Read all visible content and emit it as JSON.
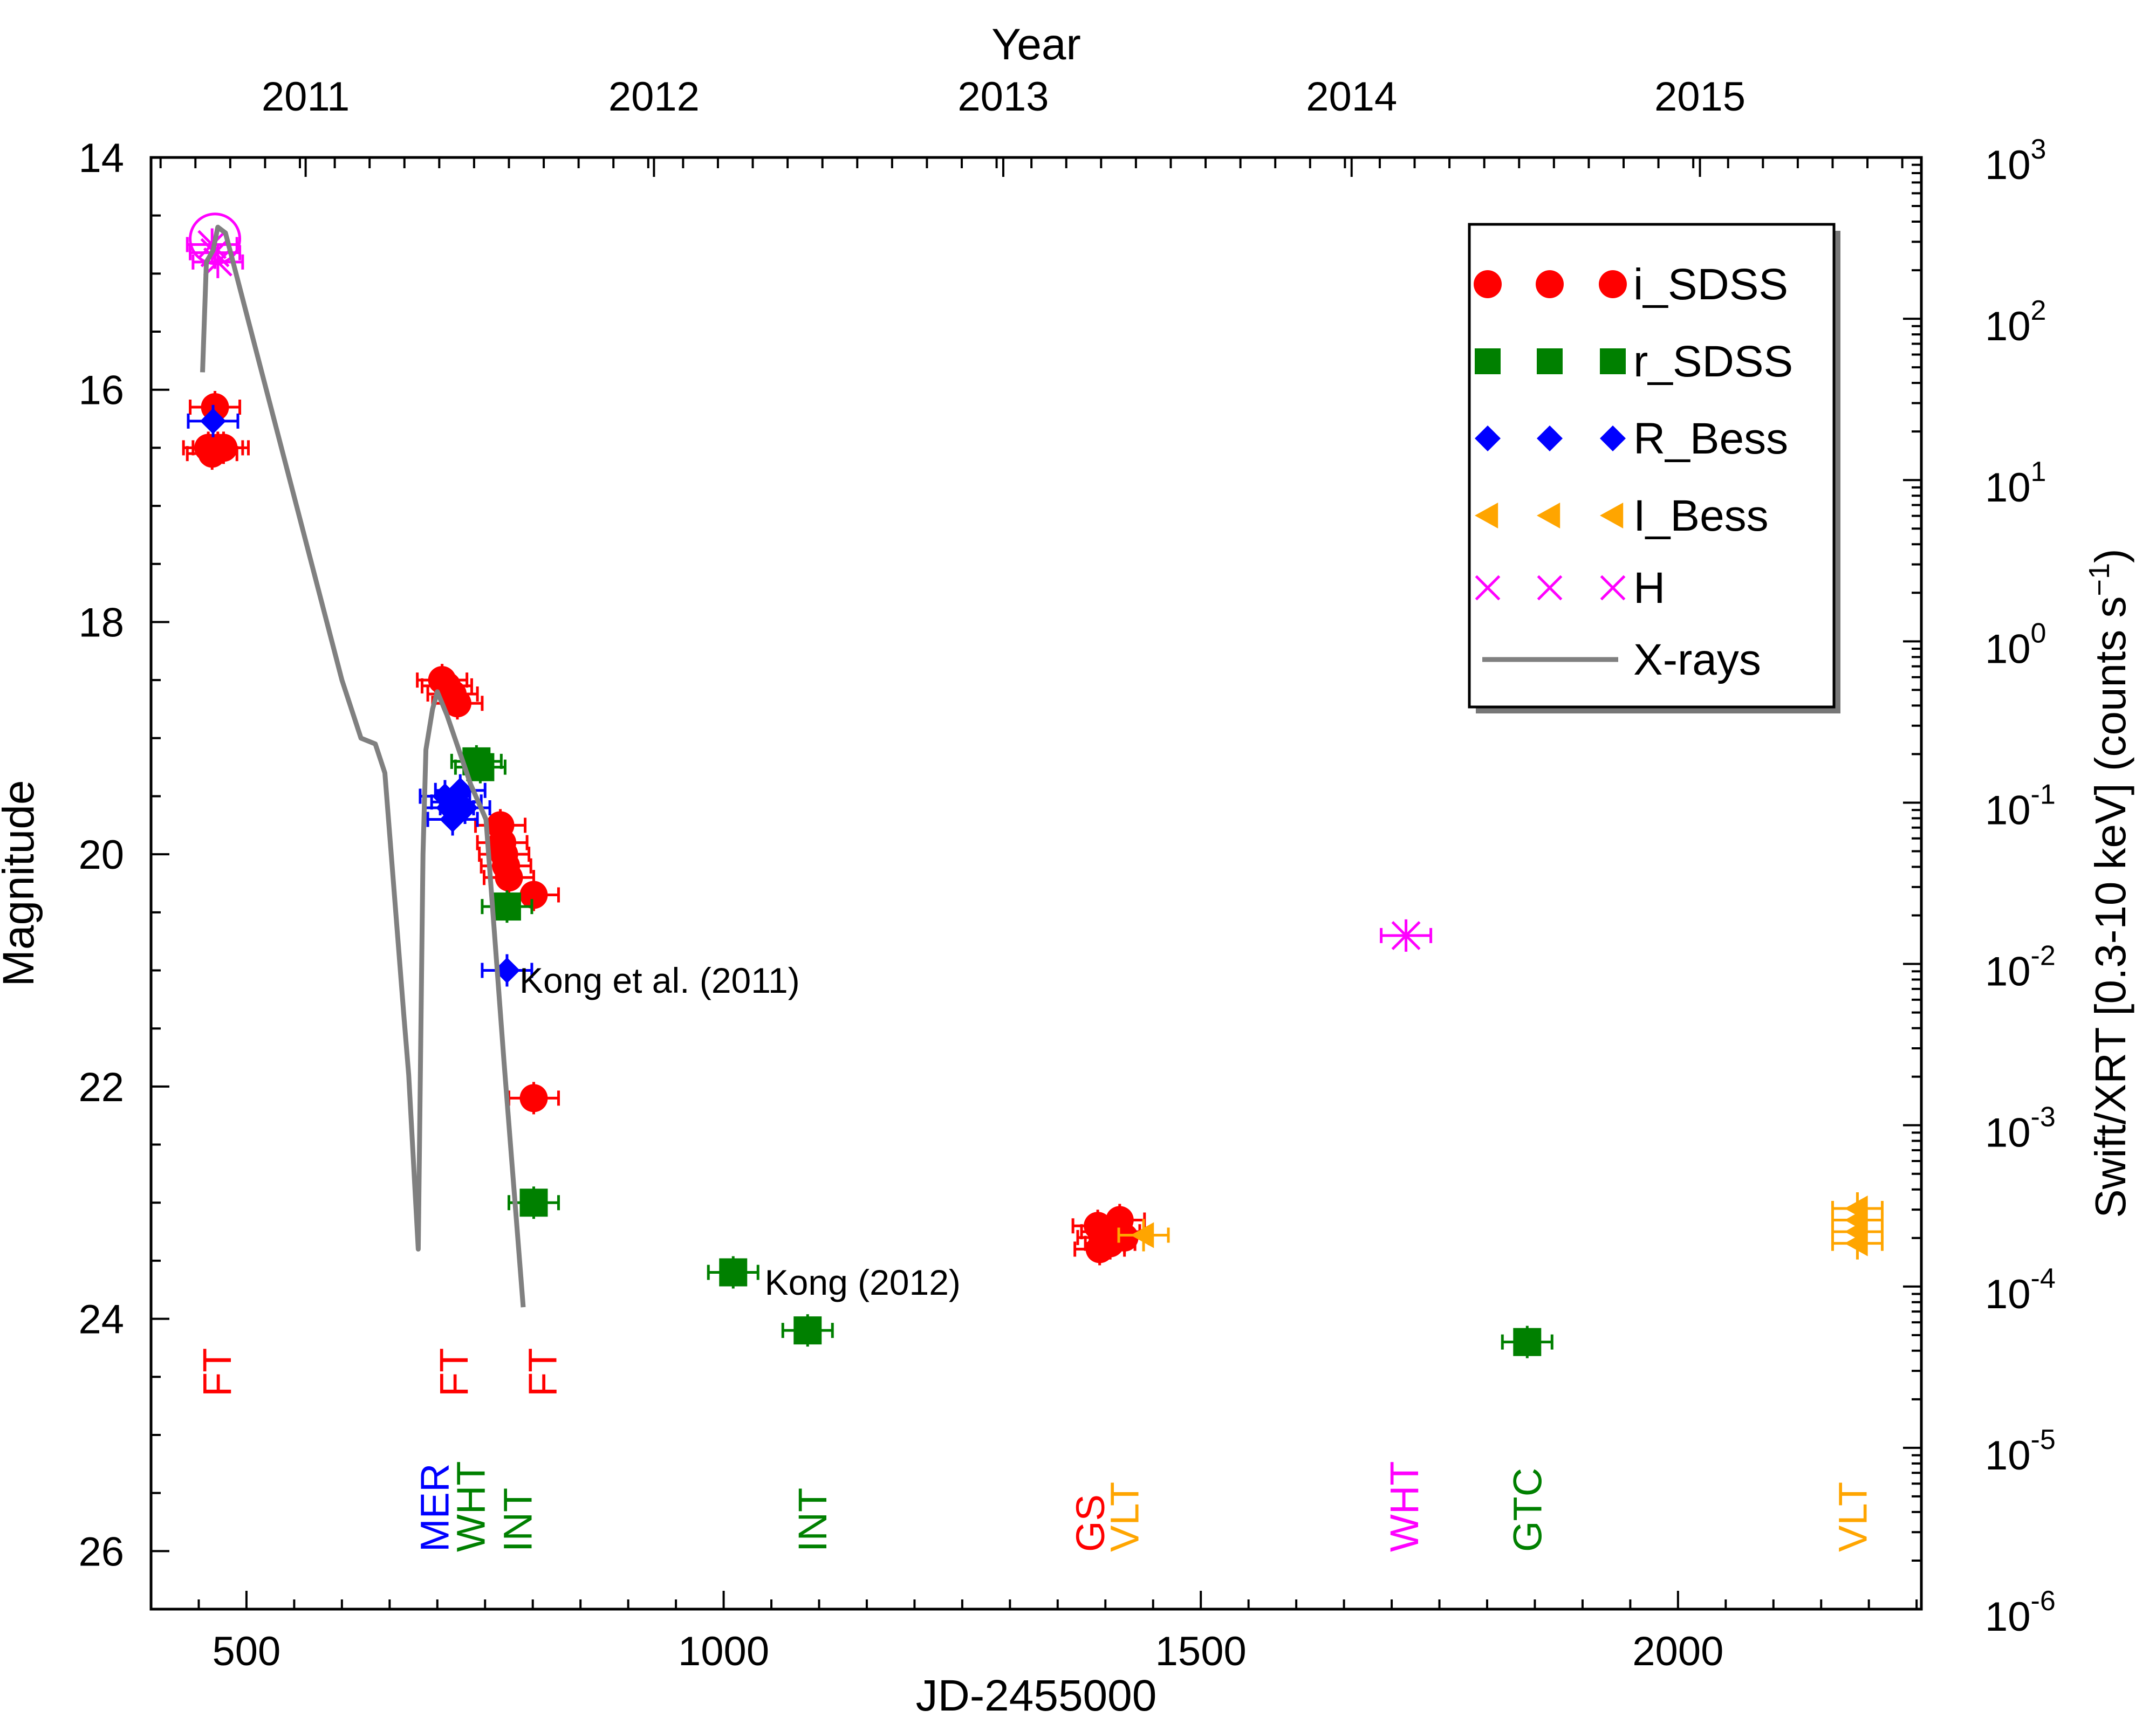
{
  "chart_data": {
    "type": "scatter",
    "xlabel": "JD-2455000",
    "x_top_label": "Year",
    "ylabel": "Magnitude",
    "y2label": "Swift/XRT [0.3-10 keV] (counts s",
    "y2label_sup": "−1",
    "y2label_end": ")",
    "xlim": [
      400,
      2255
    ],
    "ylim": [
      14,
      26.5
    ],
    "y2lim_log": [
      -6,
      3
    ],
    "x_ticks": [
      500,
      1000,
      1500,
      2000
    ],
    "x_tick_labels": [
      "500",
      "1000",
      "1500",
      "2000"
    ],
    "y_ticks": [
      14,
      16,
      18,
      20,
      22,
      24,
      26
    ],
    "y_tick_labels": [
      "14",
      "16",
      "18",
      "20",
      "22",
      "24",
      "26"
    ],
    "y2_ticks": [
      3,
      2,
      1,
      0,
      -1,
      -2,
      -3,
      -4,
      -5,
      -6
    ],
    "y2_tick_labels": [
      {
        "base": "10",
        "exp": "3"
      },
      {
        "base": "10",
        "exp": "2"
      },
      {
        "base": "10",
        "exp": "1"
      },
      {
        "base": "10",
        "exp": "0"
      },
      {
        "base": "10",
        "exp": "-1"
      },
      {
        "base": "10",
        "exp": "-2"
      },
      {
        "base": "10",
        "exp": "-3"
      },
      {
        "base": "10",
        "exp": "-4"
      },
      {
        "base": "10",
        "exp": "-5"
      },
      {
        "base": "10",
        "exp": "-6"
      }
    ],
    "year_ticks": [
      {
        "label": "2011",
        "x": 562
      },
      {
        "label": "2012",
        "x": 927
      },
      {
        "label": "2013",
        "x": 1293
      },
      {
        "label": "2014",
        "x": 1658
      },
      {
        "label": "2015",
        "x": 2023
      }
    ],
    "legend": [
      {
        "label": "i_SDSS",
        "marker": "circle",
        "color": "#ff0000"
      },
      {
        "label": "r_SDSS",
        "marker": "square",
        "color": "#008000"
      },
      {
        "label": "R_Bess",
        "marker": "diamond",
        "color": "#0000ff"
      },
      {
        "label": "I_Bess",
        "marker": "triangle-left",
        "color": "#ffa500"
      },
      {
        "label": "H",
        "marker": "cross",
        "color": "#ff00ff"
      },
      {
        "label": "X-rays",
        "marker": "line",
        "color": "#808080"
      }
    ],
    "series": [
      {
        "name": "i_SDSS",
        "marker": "circle",
        "color": "#ff0000",
        "points": [
          [
            467,
            16.15
          ],
          [
            460,
            16.5
          ],
          [
            464,
            16.55
          ],
          [
            470,
            16.5
          ],
          [
            476,
            16.5
          ],
          [
            705,
            18.5
          ],
          [
            710,
            18.55
          ],
          [
            716,
            18.62
          ],
          [
            721,
            18.7
          ],
          [
            766,
            19.75
          ],
          [
            768,
            19.9
          ],
          [
            770,
            20.0
          ],
          [
            772,
            20.1
          ],
          [
            775,
            20.2
          ],
          [
            801,
            20.35
          ],
          [
            801,
            22.1
          ],
          [
            1392,
            23.2
          ],
          [
            1394,
            23.4
          ],
          [
            1397,
            23.3
          ],
          [
            1401,
            23.25
          ],
          [
            1405,
            23.35
          ],
          [
            1410,
            23.25
          ],
          [
            1415,
            23.15
          ],
          [
            1420,
            23.3
          ]
        ]
      },
      {
        "name": "r_SDSS",
        "marker": "square",
        "color": "#008000",
        "points": [
          [
            741,
            19.2
          ],
          [
            745,
            19.25
          ],
          [
            773,
            20.45
          ],
          [
            801,
            23.0
          ],
          [
            1010,
            23.6
          ],
          [
            1088,
            24.1
          ],
          [
            1842,
            24.2
          ]
        ]
      },
      {
        "name": "R_Bess",
        "marker": "diamond",
        "color": "#0000ff",
        "points": [
          [
            465,
            16.27
          ],
          [
            708,
            19.5
          ],
          [
            712,
            19.6
          ],
          [
            716,
            19.7
          ],
          [
            720,
            19.55
          ],
          [
            724,
            19.45
          ],
          [
            729,
            19.6
          ],
          [
            773,
            21.0
          ]
        ]
      },
      {
        "name": "I_Bess",
        "marker": "triangle-left",
        "color": "#ffa500",
        "points": [
          [
            1440,
            23.28
          ],
          [
            2188,
            23.05
          ],
          [
            2188,
            23.15
          ],
          [
            2188,
            23.25
          ],
          [
            2188,
            23.35
          ]
        ]
      },
      {
        "name": "H",
        "marker": "cross",
        "color": "#ff00ff",
        "points": [
          [
            464,
            14.75
          ],
          [
            467,
            14.82
          ],
          [
            470,
            14.9
          ],
          [
            1715,
            20.7
          ]
        ]
      },
      {
        "name": "H (circled)",
        "marker": "open-circle",
        "color": "#ff00ff",
        "points": [
          [
            467,
            14.7
          ]
        ]
      },
      {
        "name": "X-rays",
        "marker": "line",
        "color": "#808080",
        "points": [
          [
            454,
            15.85
          ],
          [
            458,
            14.9
          ],
          [
            465,
            14.8
          ],
          [
            470,
            14.6
          ],
          [
            478,
            14.65
          ],
          [
            600,
            18.5
          ],
          [
            620,
            19.0
          ],
          [
            635,
            19.05
          ],
          [
            645,
            19.3
          ],
          [
            665,
            21.4
          ],
          [
            670,
            21.9
          ],
          [
            680,
            23.4
          ],
          [
            685,
            20.0
          ],
          [
            688,
            19.1
          ],
          [
            695,
            18.75
          ],
          [
            700,
            18.6
          ],
          [
            710,
            18.8
          ],
          [
            735,
            19.4
          ],
          [
            751,
            19.7
          ],
          [
            770,
            21.8
          ],
          [
            790,
            23.9
          ]
        ]
      }
    ],
    "annotations": [
      {
        "text": "Kong et al. (2011)",
        "x": 786,
        "y": 21.1
      },
      {
        "text": "Kong (2012)",
        "x": 1043,
        "y": 23.7
      }
    ],
    "telescopes": [
      {
        "text": "FT",
        "x": 469,
        "row": "upper",
        "color": "#ff0000"
      },
      {
        "text": "FT",
        "x": 717,
        "row": "upper",
        "color": "#ff0000"
      },
      {
        "text": "FT",
        "x": 810,
        "row": "upper",
        "color": "#ff0000"
      },
      {
        "text": "MER",
        "x": 697,
        "row": "lower",
        "color": "#0000ff"
      },
      {
        "text": "WHT",
        "x": 735,
        "row": "lower",
        "color": "#008000"
      },
      {
        "text": "INT",
        "x": 784,
        "row": "lower",
        "color": "#008000"
      },
      {
        "text": "INT",
        "x": 1093,
        "row": "lower",
        "color": "#008000"
      },
      {
        "text": "GS",
        "x": 1384,
        "row": "lower",
        "color": "#ff0000"
      },
      {
        "text": "VLT",
        "x": 1420,
        "row": "lower",
        "color": "#ffa500"
      },
      {
        "text": "WHT",
        "x": 1713,
        "row": "lower",
        "color": "#ff00ff"
      },
      {
        "text": "GTC",
        "x": 1842,
        "row": "lower",
        "color": "#008000"
      },
      {
        "text": "VLT",
        "x": 2183,
        "row": "lower",
        "color": "#ffa500"
      }
    ]
  }
}
